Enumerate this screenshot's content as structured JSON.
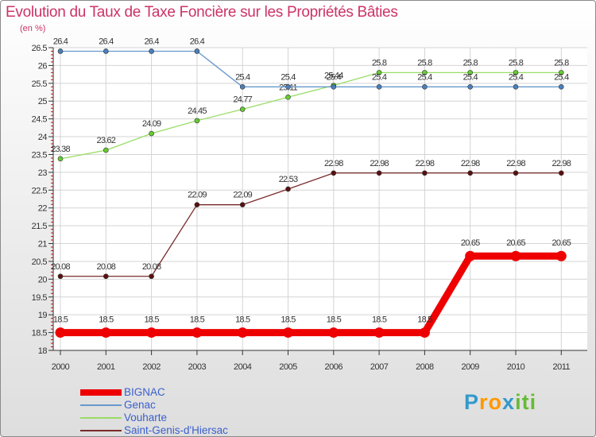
{
  "chart_data": {
    "type": "line",
    "title": "Evolution du Taux de Taxe Foncière sur les Propriétés Bâties",
    "ylabel": "(en %)",
    "xlabel": "",
    "categories": [
      "2000",
      "2001",
      "2002",
      "2003",
      "2004",
      "2005",
      "2006",
      "2007",
      "2008",
      "2009",
      "2010",
      "2011"
    ],
    "ylim": [
      18,
      26.5
    ],
    "yticks": [
      "18",
      "18.5",
      "19",
      "19.5",
      "20",
      "20.5",
      "21",
      "21.5",
      "22",
      "22.5",
      "23",
      "23.5",
      "24",
      "24.5",
      "25",
      "25.5",
      "26",
      "26.5"
    ],
    "grid": true,
    "legend_position": "bottom-left",
    "series": [
      {
        "name": "Saint-Genis-d'Hiersac",
        "color": "#7a2a2a",
        "marker": "#5a1010",
        "values": [
          20.08,
          20.08,
          20.08,
          22.09,
          22.09,
          22.53,
          22.98,
          22.98,
          22.98,
          22.98,
          22.98,
          22.98
        ],
        "labels": [
          "20.08",
          "20.08",
          "20.08",
          "22.09",
          "22.09",
          "22.53",
          "22.98",
          "22.98",
          "22.98",
          "22.98",
          "22.98",
          "22.98"
        ]
      },
      {
        "name": "Vouharte",
        "color": "#99dd66",
        "marker": "#66cc33",
        "values": [
          23.38,
          23.62,
          24.09,
          24.45,
          24.77,
          25.11,
          25.44,
          25.8,
          25.8,
          25.8,
          25.8,
          25.8
        ],
        "labels": [
          "23.38",
          "23.62",
          "24.09",
          "24.45",
          "24.77",
          "25.11",
          "25.44",
          "25.8",
          "25.8",
          "25.8",
          "25.8",
          "25.8"
        ]
      },
      {
        "name": "Genac",
        "color": "#6699cc",
        "marker": "#4a7fbb",
        "values": [
          26.4,
          26.4,
          26.4,
          26.4,
          25.4,
          25.4,
          25.4,
          25.4,
          25.4,
          25.4,
          25.4,
          25.4
        ],
        "labels": [
          "26.4",
          "26.4",
          "26.4",
          "26.4",
          "25.4",
          "25.4",
          "25.4",
          "25.4",
          "25.4",
          "25.4",
          "25.4",
          "25.4"
        ]
      },
      {
        "name": "BIGNAC",
        "color": "#ee0000",
        "marker": "#ee0000",
        "values": [
          18.5,
          18.5,
          18.5,
          18.5,
          18.5,
          18.5,
          18.5,
          18.5,
          18.5,
          20.65,
          20.65,
          20.65
        ],
        "labels": [
          "18.5",
          "18.5",
          "18.5",
          "18.5",
          "18.5",
          "18.5",
          "18.5",
          "18.5",
          "18.5",
          "20.65",
          "20.65",
          "20.65"
        ]
      }
    ],
    "legend": [
      {
        "name": "BIGNAC",
        "color": "#ee0000"
      },
      {
        "name": "Genac",
        "color": "#6699cc"
      },
      {
        "name": "Vouharte",
        "color": "#99dd66"
      },
      {
        "name": "Saint-Genis-d'Hiersac",
        "color": "#7a2a2a"
      }
    ]
  },
  "logo": {
    "letters": [
      "P",
      "r",
      "o",
      "x",
      "i",
      "t",
      "i"
    ],
    "colors": [
      "#3399cc",
      "#ff9900",
      "#ff9900",
      "#3399cc",
      "#66bb33",
      "#66bb33",
      "#66bb33"
    ]
  }
}
